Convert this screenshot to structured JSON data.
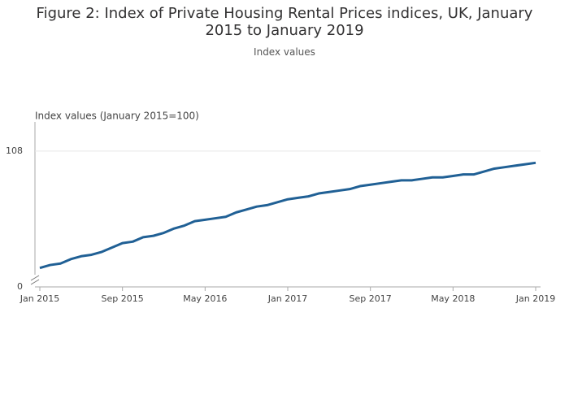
{
  "chart_data": {
    "type": "line",
    "title": "Figure 2: Index of Private Housing Rental Prices indices, UK, January 2015 to January 2019",
    "subtitle": "Index values",
    "y_label": "Index values (January 2015=100)",
    "x": [
      "Jan 2015",
      null,
      null,
      null,
      null,
      null,
      null,
      null,
      "Sep 2015",
      null,
      null,
      null,
      null,
      null,
      null,
      null,
      "May 2016",
      null,
      null,
      null,
      null,
      null,
      null,
      null,
      "Jan 2017",
      null,
      null,
      null,
      null,
      null,
      null,
      null,
      "Sep 2017",
      null,
      null,
      null,
      null,
      null,
      null,
      null,
      "May 2018",
      null,
      null,
      null,
      null,
      null,
      null,
      null,
      "Jan 2019"
    ],
    "series": [
      {
        "name": "Index values",
        "color": "#206095",
        "values": [
          100.0,
          100.2,
          100.3,
          100.6,
          100.8,
          100.9,
          101.1,
          101.4,
          101.7,
          101.8,
          102.1,
          102.2,
          102.4,
          102.7,
          102.9,
          103.2,
          103.3,
          103.4,
          103.5,
          103.8,
          104.0,
          104.2,
          104.3,
          104.5,
          104.7,
          104.8,
          104.9,
          105.1,
          105.2,
          105.3,
          105.4,
          105.6,
          105.7,
          105.8,
          105.9,
          106.0,
          106.0,
          106.1,
          106.2,
          106.2,
          106.3,
          106.4,
          106.4,
          106.6,
          106.8,
          106.9,
          107.0,
          107.1,
          107.2
        ]
      }
    ],
    "ylim": [
      98.7,
      110
    ],
    "yticks": [
      0,
      108
    ],
    "y_axis_break": true,
    "grid": true
  }
}
